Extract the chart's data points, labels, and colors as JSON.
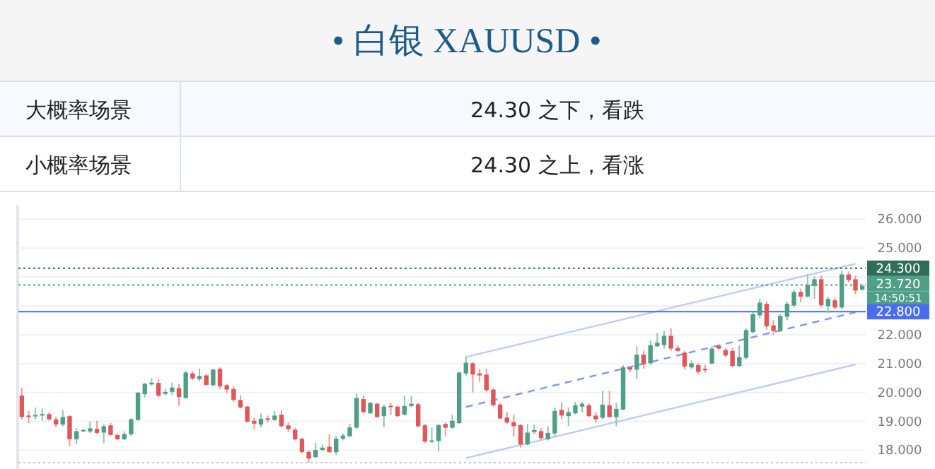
{
  "chart_data": {
    "type": "candlestick",
    "title": "• 白银 XAUUSD •",
    "annotations": [
      "大概率场景",
      "24.30 之下，看跌",
      "小概率场景",
      "24.30 之上，看涨",
      "14:50:51"
    ],
    "categories": [
      null,
      null,
      null,
      null,
      null,
      null,
      null,
      null,
      null,
      null,
      null,
      null,
      null,
      null,
      null,
      null,
      null,
      null,
      null,
      null,
      null,
      null,
      null,
      null,
      null,
      null,
      null,
      null,
      null,
      null,
      null,
      null,
      null,
      null,
      null,
      null,
      null,
      null,
      null,
      null,
      null,
      null,
      null,
      null,
      null,
      null,
      null,
      null,
      null,
      null,
      null,
      null,
      null,
      null,
      null,
      null,
      null,
      null,
      null,
      null,
      null,
      null,
      null,
      null,
      null,
      null,
      null,
      null,
      null,
      null,
      null,
      null,
      null,
      null,
      null,
      null,
      null,
      null,
      null,
      null,
      null,
      null,
      null,
      null,
      null,
      null,
      null,
      null,
      null,
      null,
      null,
      null,
      null,
      null,
      null,
      null,
      null,
      null,
      null,
      null,
      null,
      null,
      null,
      null,
      null,
      null,
      null,
      null,
      null,
      null,
      null,
      null,
      null,
      null,
      null,
      null,
      null,
      null,
      null,
      null,
      null,
      null,
      null,
      null
    ],
    "ohlc": [
      [
        19.89,
        20.17,
        19.07,
        19.15
      ],
      [
        19.2,
        19.36,
        18.94,
        19.17
      ],
      [
        19.18,
        19.48,
        19.07,
        19.22
      ],
      [
        19.2,
        19.45,
        19.02,
        19.25
      ],
      [
        19.25,
        19.32,
        19.02,
        19.07
      ],
      [
        19.07,
        19.15,
        18.79,
        18.89
      ],
      [
        18.89,
        19.4,
        18.83,
        19.15
      ],
      [
        19.18,
        19.22,
        18.14,
        18.38
      ],
      [
        18.38,
        18.76,
        18.2,
        18.66
      ],
      [
        18.65,
        18.74,
        18.63,
        18.7
      ],
      [
        18.65,
        18.99,
        18.6,
        18.76
      ],
      [
        18.74,
        19.02,
        18.56,
        18.6
      ],
      [
        18.61,
        18.89,
        18.24,
        18.83
      ],
      [
        18.86,
        18.94,
        18.5,
        18.53
      ],
      [
        18.53,
        18.58,
        18.34,
        18.38
      ],
      [
        18.38,
        18.66,
        18.35,
        18.56
      ],
      [
        18.55,
        19.12,
        18.5,
        19.07
      ],
      [
        19.05,
        20.02,
        19.02,
        19.99
      ],
      [
        19.94,
        20.33,
        19.84,
        20.3
      ],
      [
        20.28,
        20.49,
        20.23,
        20.34
      ],
      [
        20.33,
        20.46,
        19.84,
        19.89
      ],
      [
        19.95,
        20.13,
        19.89,
        20.02
      ],
      [
        20.02,
        20.34,
        19.92,
        20.17
      ],
      [
        20.15,
        20.3,
        19.54,
        19.84
      ],
      [
        19.81,
        20.75,
        19.79,
        20.69
      ],
      [
        20.66,
        20.74,
        20.43,
        20.49
      ],
      [
        20.46,
        20.83,
        20.39,
        20.57
      ],
      [
        20.59,
        20.64,
        20.23,
        20.26
      ],
      [
        20.25,
        20.82,
        20.21,
        20.79
      ],
      [
        20.82,
        20.87,
        20.13,
        20.21
      ],
      [
        20.25,
        20.3,
        19.97,
        20.1
      ],
      [
        20.12,
        20.21,
        19.67,
        19.74
      ],
      [
        19.74,
        19.9,
        19.45,
        19.48
      ],
      [
        19.51,
        19.54,
        18.96,
        18.99
      ],
      [
        19.02,
        19.12,
        18.73,
        18.92
      ],
      [
        18.89,
        19.27,
        18.79,
        19.09
      ],
      [
        19.1,
        19.2,
        18.96,
        19.05
      ],
      [
        19.05,
        19.36,
        19.02,
        19.2
      ],
      [
        19.23,
        19.38,
        18.79,
        18.83
      ],
      [
        18.86,
        18.96,
        18.63,
        18.73
      ],
      [
        18.71,
        18.78,
        18.34,
        18.38
      ],
      [
        18.4,
        18.43,
        17.89,
        17.94
      ],
      [
        17.94,
        18.01,
        17.57,
        17.71
      ],
      [
        17.76,
        18.25,
        17.73,
        18.01
      ],
      [
        18.01,
        18.2,
        17.96,
        18.09
      ],
      [
        18.12,
        18.55,
        17.91,
        17.94
      ],
      [
        17.93,
        18.5,
        17.84,
        18.4
      ],
      [
        18.4,
        18.58,
        18.34,
        18.51
      ],
      [
        18.48,
        18.91,
        18.47,
        18.79
      ],
      [
        18.78,
        19.97,
        18.74,
        19.81
      ],
      [
        19.77,
        19.89,
        19.28,
        19.32
      ],
      [
        19.28,
        19.67,
        19.25,
        19.64
      ],
      [
        19.61,
        19.64,
        19.12,
        19.15
      ],
      [
        19.18,
        19.58,
        18.79,
        19.51
      ],
      [
        19.54,
        19.64,
        19.23,
        19.51
      ],
      [
        19.51,
        19.56,
        19.15,
        19.18
      ],
      [
        19.23,
        19.9,
        19.2,
        19.53
      ],
      [
        19.53,
        19.89,
        19.48,
        19.61
      ],
      [
        19.59,
        19.64,
        18.79,
        18.83
      ],
      [
        18.86,
        18.91,
        18.25,
        18.3
      ],
      [
        18.3,
        18.79,
        18.25,
        18.34
      ],
      [
        18.32,
        18.91,
        17.97,
        18.87
      ],
      [
        18.91,
        18.96,
        18.47,
        18.78
      ],
      [
        18.78,
        19.23,
        18.74,
        19.02
      ],
      [
        18.94,
        20.72,
        18.91,
        20.69
      ],
      [
        20.66,
        21.24,
        20.59,
        21.03
      ],
      [
        21.01,
        21.05,
        20.0,
        20.62
      ],
      [
        20.66,
        20.82,
        20.36,
        20.59
      ],
      [
        20.62,
        20.82,
        20.0,
        20.08
      ],
      [
        20.1,
        20.15,
        19.51,
        19.56
      ],
      [
        19.58,
        19.64,
        19.07,
        19.1
      ],
      [
        19.13,
        19.32,
        18.91,
        18.96
      ],
      [
        18.97,
        19.23,
        18.47,
        18.83
      ],
      [
        18.87,
        18.91,
        18.09,
        18.2
      ],
      [
        18.2,
        18.91,
        18.17,
        18.61
      ],
      [
        18.63,
        18.89,
        18.55,
        18.7
      ],
      [
        18.66,
        18.76,
        18.34,
        18.42
      ],
      [
        18.38,
        18.83,
        18.34,
        18.6
      ],
      [
        18.58,
        19.48,
        18.47,
        19.36
      ],
      [
        19.4,
        19.67,
        19.07,
        19.2
      ],
      [
        19.18,
        19.48,
        18.83,
        19.32
      ],
      [
        19.28,
        19.67,
        19.23,
        19.56
      ],
      [
        19.51,
        19.67,
        19.32,
        19.61
      ],
      [
        19.56,
        19.61,
        19.15,
        19.18
      ],
      [
        19.2,
        19.32,
        18.96,
        19.07
      ],
      [
        19.12,
        20.05,
        19.07,
        19.58
      ],
      [
        19.56,
        20.05,
        19.12,
        19.15
      ],
      [
        19.15,
        19.64,
        18.83,
        19.43
      ],
      [
        19.41,
        20.95,
        19.38,
        20.87
      ],
      [
        20.87,
        20.92,
        20.7,
        20.79
      ],
      [
        20.79,
        21.6,
        20.46,
        21.31
      ],
      [
        21.31,
        21.44,
        20.82,
        20.98
      ],
      [
        21.01,
        21.8,
        20.95,
        21.64
      ],
      [
        21.6,
        22.06,
        21.57,
        21.72
      ],
      [
        21.64,
        22.13,
        21.52,
        21.96
      ],
      [
        21.96,
        22.22,
        21.44,
        21.52
      ],
      [
        21.54,
        21.64,
        21.41,
        21.44
      ],
      [
        21.38,
        21.44,
        20.79,
        20.9
      ],
      [
        20.87,
        21.11,
        20.82,
        21.01
      ],
      [
        20.95,
        21.01,
        20.62,
        20.71
      ],
      [
        20.82,
        20.95,
        20.69,
        20.79
      ],
      [
        21.0,
        21.6,
        20.98,
        21.52
      ],
      [
        21.62,
        21.67,
        21.47,
        21.52
      ],
      [
        21.47,
        21.54,
        21.23,
        21.28
      ],
      [
        21.44,
        21.54,
        20.88,
        20.92
      ],
      [
        20.92,
        21.64,
        20.87,
        21.23
      ],
      [
        21.2,
        22.22,
        21.15,
        22.16
      ],
      [
        22.09,
        22.78,
        22.04,
        22.71
      ],
      [
        22.67,
        23.24,
        22.58,
        23.11
      ],
      [
        23.07,
        23.16,
        22.18,
        22.29
      ],
      [
        22.32,
        22.5,
        21.99,
        22.13
      ],
      [
        22.13,
        22.71,
        22.09,
        22.65
      ],
      [
        22.62,
        23.14,
        22.5,
        23.07
      ],
      [
        23.01,
        23.56,
        22.94,
        23.48
      ],
      [
        23.48,
        23.6,
        23.12,
        23.32
      ],
      [
        23.32,
        24.09,
        23.29,
        23.73
      ],
      [
        23.69,
        24.02,
        23.24,
        23.92
      ],
      [
        23.92,
        24.05,
        22.94,
        23.02
      ],
      [
        22.99,
        23.32,
        22.75,
        23.24
      ],
      [
        23.19,
        23.27,
        22.88,
        22.94
      ],
      [
        22.94,
        24.22,
        22.88,
        24.09
      ],
      [
        24.09,
        24.19,
        23.81,
        23.89
      ],
      [
        23.92,
        24.05,
        23.4,
        23.53
      ],
      [
        23.56,
        23.76,
        23.53,
        23.69
      ]
    ],
    "series": [
      {
        "type": "line",
        "values": [
          null,
          null,
          null,
          null,
          null,
          null,
          null,
          null,
          null,
          null,
          null,
          null,
          null,
          null,
          null,
          null,
          null,
          null,
          null,
          null,
          null,
          null,
          null,
          null,
          null,
          null,
          null,
          null,
          null,
          null,
          null,
          null,
          null,
          null,
          null,
          null,
          null,
          null,
          null,
          null,
          null,
          null,
          null,
          null,
          null,
          null,
          null,
          null,
          null,
          null,
          null,
          null,
          null,
          null,
          null,
          null,
          null,
          null,
          null,
          null,
          null,
          null,
          null,
          null,
          null,
          21.23,
          null,
          null,
          null,
          null,
          null,
          null,
          null,
          null,
          null,
          null,
          null,
          null,
          null,
          null,
          null,
          null,
          null,
          null,
          null,
          null,
          null,
          null,
          null,
          null,
          null,
          null,
          null,
          null,
          null,
          null,
          null,
          null,
          null,
          null,
          null,
          null,
          null,
          null,
          null,
          null,
          null,
          null,
          null,
          null,
          null,
          null,
          null,
          null,
          null,
          null,
          null,
          null,
          null,
          null,
          null,
          null,
          24.46,
          null
        ],
        "color": "#bfcdf7",
        "line_style": "solid"
      },
      {
        "type": "line",
        "values": [
          null,
          null,
          null,
          null,
          null,
          null,
          null,
          null,
          null,
          null,
          null,
          null,
          null,
          null,
          null,
          null,
          null,
          null,
          null,
          null,
          null,
          null,
          null,
          null,
          null,
          null,
          null,
          null,
          null,
          null,
          null,
          null,
          null,
          null,
          null,
          null,
          null,
          null,
          null,
          null,
          null,
          null,
          null,
          null,
          null,
          null,
          null,
          null,
          null,
          null,
          null,
          null,
          null,
          null,
          null,
          null,
          null,
          null,
          null,
          null,
          null,
          null,
          null,
          null,
          null,
          19.5,
          null,
          null,
          null,
          null,
          null,
          null,
          null,
          null,
          null,
          null,
          null,
          null,
          null,
          null,
          null,
          null,
          null,
          null,
          null,
          null,
          null,
          null,
          null,
          null,
          null,
          null,
          null,
          null,
          null,
          null,
          null,
          null,
          null,
          null,
          null,
          null,
          null,
          null,
          null,
          null,
          null,
          null,
          null,
          null,
          null,
          null,
          null,
          null,
          null,
          null,
          null,
          null,
          null,
          null,
          null,
          null,
          22.78,
          null
        ],
        "color": "#7f98ee",
        "line_style": "dashed"
      },
      {
        "type": "line",
        "values": [
          null,
          null,
          null,
          null,
          null,
          null,
          null,
          null,
          null,
          null,
          null,
          null,
          null,
          null,
          null,
          null,
          null,
          null,
          null,
          null,
          null,
          null,
          null,
          null,
          null,
          null,
          null,
          null,
          null,
          null,
          null,
          null,
          null,
          null,
          null,
          null,
          null,
          null,
          null,
          null,
          null,
          null,
          null,
          null,
          null,
          null,
          null,
          null,
          null,
          null,
          null,
          null,
          null,
          null,
          null,
          null,
          null,
          null,
          null,
          null,
          null,
          null,
          null,
          null,
          null,
          17.73,
          null,
          null,
          null,
          null,
          null,
          null,
          null,
          null,
          null,
          null,
          null,
          null,
          null,
          null,
          null,
          null,
          null,
          null,
          null,
          null,
          null,
          null,
          null,
          null,
          null,
          null,
          null,
          null,
          null,
          null,
          null,
          null,
          null,
          null,
          null,
          null,
          null,
          null,
          null,
          null,
          null,
          null,
          null,
          null,
          null,
          null,
          null,
          null,
          null,
          null,
          null,
          null,
          null,
          null,
          null,
          null,
          20.97,
          null
        ],
        "color": "#bfcdf7",
        "line_style": "solid"
      }
    ],
    "ylim": [
      17.35,
      26.4
    ],
    "yticks": [
      {
        "value": 18,
        "label": "18.000"
      },
      {
        "value": 19,
        "label": "19.000"
      },
      {
        "value": 20,
        "label": "20.000"
      },
      {
        "value": 21,
        "label": "21.000"
      },
      {
        "value": 22,
        "label": "22.000"
      },
      {
        "value": 23,
        "label": null
      },
      {
        "value": 24,
        "label": null
      },
      {
        "value": 25,
        "label": "25.000"
      },
      {
        "value": 26,
        "label": "26.000"
      }
    ],
    "ref_lines": [
      {
        "axis": "y",
        "value": 24.3,
        "label": "24.300",
        "color": "#2f6d56",
        "line_style": "dotted"
      },
      {
        "axis": "y",
        "value": 23.72,
        "label": "23.720",
        "color": "#4f9f88",
        "line_style": "dotted"
      },
      {
        "axis": "y",
        "value": 22.8,
        "label": "22.800",
        "color": "#4a6cf0",
        "line_style": "solid"
      },
      {
        "axis": "y",
        "value": 17.57,
        "color": "#c8c8c8",
        "line_style": "dotted"
      }
    ],
    "grid": "y",
    "tick_labels": "y"
  }
}
